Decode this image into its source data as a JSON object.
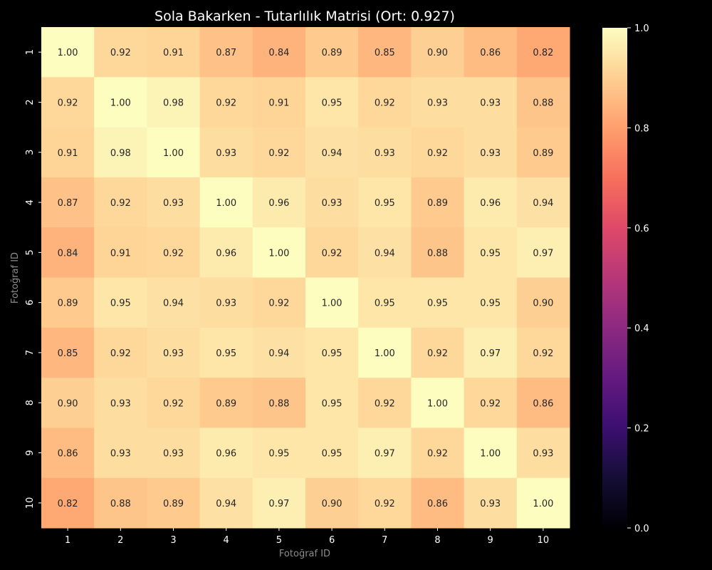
{
  "chart_data": {
    "type": "heatmap",
    "title": "Sola Bakarken - Tutarlılık Matrisi (Ort: 0.927)",
    "xlabel": "Fotoğraf ID",
    "ylabel": "Fotoğraf ID",
    "x_categories": [
      "1",
      "2",
      "3",
      "4",
      "5",
      "6",
      "7",
      "8",
      "9",
      "10"
    ],
    "y_categories": [
      "1",
      "2",
      "3",
      "4",
      "5",
      "6",
      "7",
      "8",
      "9",
      "10"
    ],
    "values": [
      [
        1.0,
        0.92,
        0.91,
        0.87,
        0.84,
        0.89,
        0.85,
        0.9,
        0.86,
        0.82
      ],
      [
        0.92,
        1.0,
        0.98,
        0.92,
        0.91,
        0.95,
        0.92,
        0.93,
        0.93,
        0.88
      ],
      [
        0.91,
        0.98,
        1.0,
        0.93,
        0.92,
        0.94,
        0.93,
        0.92,
        0.93,
        0.89
      ],
      [
        0.87,
        0.92,
        0.93,
        1.0,
        0.96,
        0.93,
        0.95,
        0.89,
        0.96,
        0.94
      ],
      [
        0.84,
        0.91,
        0.92,
        0.96,
        1.0,
        0.92,
        0.94,
        0.88,
        0.95,
        0.97
      ],
      [
        0.89,
        0.95,
        0.94,
        0.93,
        0.92,
        1.0,
        0.95,
        0.95,
        0.95,
        0.9
      ],
      [
        0.85,
        0.92,
        0.93,
        0.95,
        0.94,
        0.95,
        1.0,
        0.92,
        0.97,
        0.92
      ],
      [
        0.9,
        0.93,
        0.92,
        0.89,
        0.88,
        0.95,
        0.92,
        1.0,
        0.92,
        0.86
      ],
      [
        0.86,
        0.93,
        0.93,
        0.96,
        0.95,
        0.95,
        0.97,
        0.92,
        1.0,
        0.93
      ],
      [
        0.82,
        0.88,
        0.89,
        0.94,
        0.97,
        0.9,
        0.92,
        0.86,
        0.93,
        1.0
      ]
    ],
    "value_range": [
      0.0,
      1.0
    ],
    "colormap": "magma",
    "colorbar_ticks": [
      "0.0",
      "0.2",
      "0.4",
      "0.6",
      "0.8",
      "1.0"
    ],
    "background": "#000000"
  }
}
